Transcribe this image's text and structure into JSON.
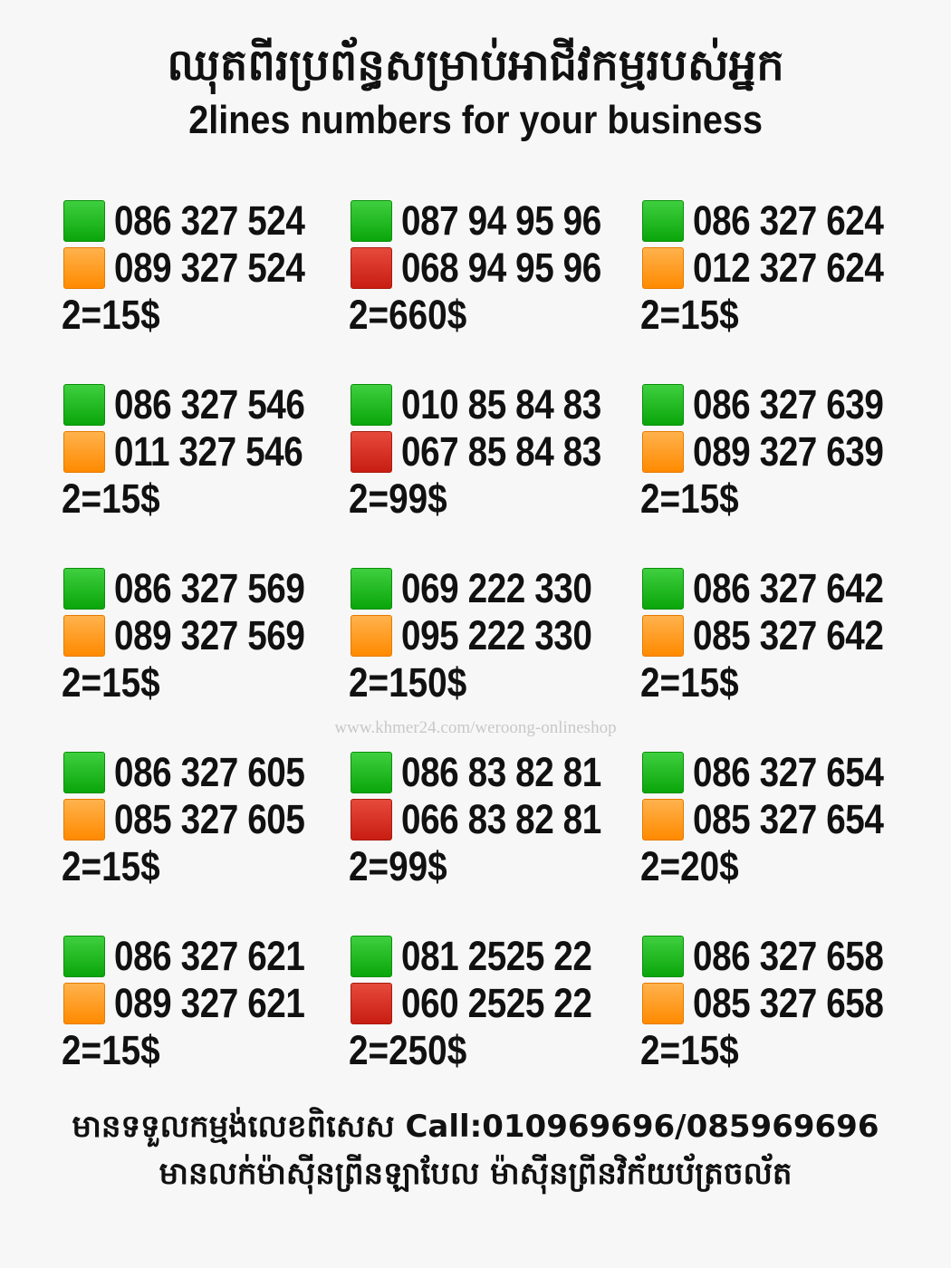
{
  "header": {
    "title_khmer": "ឈុតពីរប្រព័ន្ធសម្រាប់អាជីវកម្មរបស់អ្នក",
    "title_english": "2lines numbers for your business"
  },
  "colors": {
    "green": "#14b414",
    "orange": "#ff9a1a",
    "red": "#d0281a"
  },
  "groups": [
    {
      "lines": [
        {
          "color": "green",
          "number": "086 327 524"
        },
        {
          "color": "orange",
          "number": "089 327 524"
        }
      ],
      "price": "2=15$"
    },
    {
      "lines": [
        {
          "color": "green",
          "number": "087 94 95 96"
        },
        {
          "color": "red",
          "number": "068 94 95 96"
        }
      ],
      "price": "2=660$"
    },
    {
      "lines": [
        {
          "color": "green",
          "number": "086 327 624"
        },
        {
          "color": "orange",
          "number": "012 327 624"
        }
      ],
      "price": "2=15$"
    },
    {
      "lines": [
        {
          "color": "green",
          "number": "086 327 546"
        },
        {
          "color": "orange",
          "number": "011 327 546"
        }
      ],
      "price": "2=15$"
    },
    {
      "lines": [
        {
          "color": "green",
          "number": "010 85 84 83"
        },
        {
          "color": "red",
          "number": "067 85 84 83"
        }
      ],
      "price": "2=99$"
    },
    {
      "lines": [
        {
          "color": "green",
          "number": "086 327 639"
        },
        {
          "color": "orange",
          "number": "089 327 639"
        }
      ],
      "price": "2=15$"
    },
    {
      "lines": [
        {
          "color": "green",
          "number": "086 327 569"
        },
        {
          "color": "orange",
          "number": "089 327 569"
        }
      ],
      "price": "2=15$"
    },
    {
      "lines": [
        {
          "color": "green",
          "number": "069 222 330"
        },
        {
          "color": "orange",
          "number": "095 222 330"
        }
      ],
      "price": "2=150$"
    },
    {
      "lines": [
        {
          "color": "green",
          "number": "086 327 642"
        },
        {
          "color": "orange",
          "number": "085 327 642"
        }
      ],
      "price": "2=15$"
    },
    {
      "lines": [
        {
          "color": "green",
          "number": "086 327 605"
        },
        {
          "color": "orange",
          "number": "085 327 605"
        }
      ],
      "price": "2=15$"
    },
    {
      "lines": [
        {
          "color": "green",
          "number": "086 83 82 81"
        },
        {
          "color": "red",
          "number": "066 83 82 81"
        }
      ],
      "price": "2=99$"
    },
    {
      "lines": [
        {
          "color": "green",
          "number": "086 327 654"
        },
        {
          "color": "orange",
          "number": "085 327 654"
        }
      ],
      "price": "2=20$"
    },
    {
      "lines": [
        {
          "color": "green",
          "number": "086 327 621"
        },
        {
          "color": "orange",
          "number": "089 327 621"
        }
      ],
      "price": "2=15$"
    },
    {
      "lines": [
        {
          "color": "green",
          "number": "081 2525 22"
        },
        {
          "color": "red",
          "number": "060 2525 22"
        }
      ],
      "price": "2=250$"
    },
    {
      "lines": [
        {
          "color": "green",
          "number": "086 327 658"
        },
        {
          "color": "orange",
          "number": "085 327 658"
        }
      ],
      "price": "2=15$"
    }
  ],
  "watermark": "www.khmer24.com/weroong-onlineshop",
  "footer": {
    "line1": "មានទទួលកម្មង់លេខពិសេស Call:010969696/085969696",
    "line2": "មានលក់ម៉ាស៊ីនព្រីនឡាបែល ម៉ាស៊ីនព្រីនវិក័យប័ត្រចល័ត"
  }
}
